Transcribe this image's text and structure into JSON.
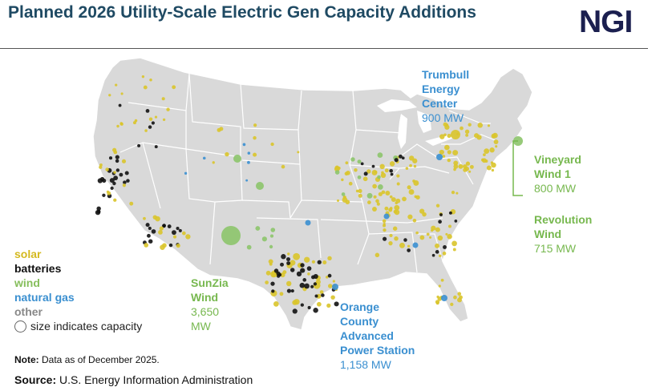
{
  "title": "Planned 2026 Utility-Scale Electric Gen Capacity Additions",
  "logo": "NGI",
  "colors": {
    "solar": "#d9c42a",
    "batteries": "#111111",
    "wind": "#8cc46a",
    "natural_gas": "#3a8fd0",
    "other": "#888888",
    "land": "#d9d9d9",
    "title": "#1f4a63"
  },
  "legend": {
    "solar": "solar",
    "batteries": "batteries",
    "wind": "wind",
    "natural_gas": "natural gas",
    "other": "other",
    "size_note": "size indicates capacity"
  },
  "annotations": {
    "trumbull": {
      "name_lines": [
        "Trumbull",
        "Energy",
        "Center"
      ],
      "capacity": "900 MW"
    },
    "vineyard": {
      "name_lines": [
        "Vineyard",
        "Wind 1"
      ],
      "capacity": "800 MW"
    },
    "revolution": {
      "name_lines": [
        "Revolution",
        "Wind"
      ],
      "capacity": "715 MW"
    },
    "sunzia": {
      "name_lines": [
        "SunZia",
        "Wind"
      ],
      "capacity_lines": [
        "3,650",
        "MW"
      ]
    },
    "orange": {
      "name_lines": [
        "Orange",
        "County",
        "Advanced",
        "Power Station"
      ],
      "capacity": "1,158 MW"
    }
  },
  "note": {
    "label": "Note:",
    "text": " Data as of December 2025."
  },
  "source": {
    "label": "Source:",
    "text": " U.S. Energy Information Administration"
  }
}
